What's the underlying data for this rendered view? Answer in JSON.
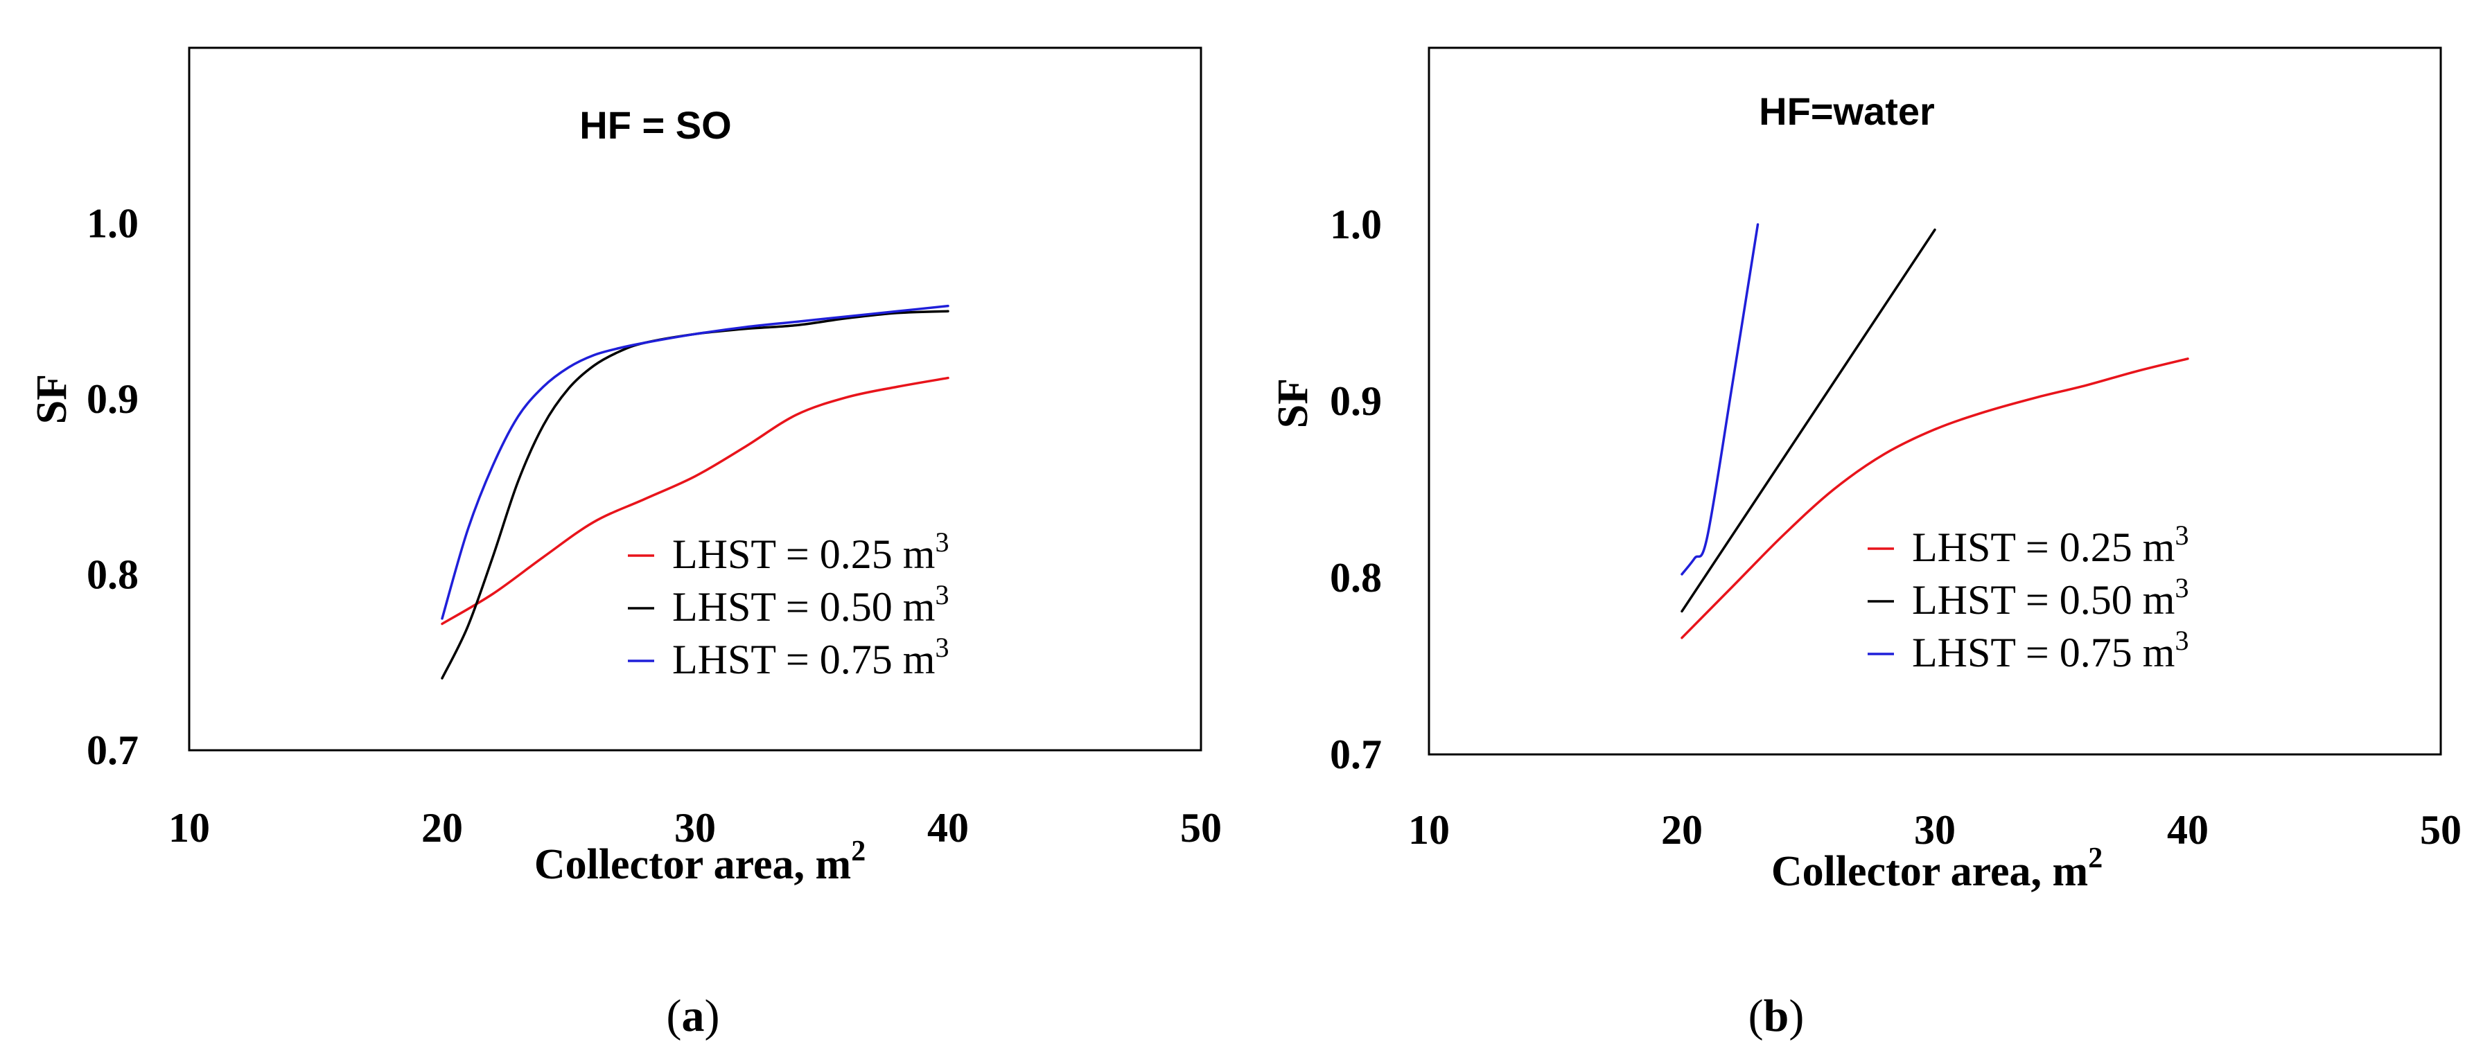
{
  "chart_data": [
    {
      "id": "a",
      "type": "line",
      "title": "HF = SO",
      "panel_label": "a",
      "xlabel": "Collector area, m",
      "xlabel_sup": "2",
      "ylabel": "SF",
      "xlim": [
        10,
        50
      ],
      "ylim": [
        0.7,
        1.1
      ],
      "x_ticks": [
        "10",
        "20",
        "30",
        "40",
        "50"
      ],
      "y_ticks": [
        "0.7",
        "0.8",
        "0.9",
        "1.0"
      ],
      "grid": false,
      "legend_position": "bottom-right",
      "series": [
        {
          "name": "LHST = 0.25 m",
          "name_sup": "3",
          "color": "#e8141b",
          "x": [
            20,
            22,
            24,
            26,
            28,
            30,
            32,
            34,
            36,
            38,
            40
          ],
          "y": [
            0.772,
            0.789,
            0.81,
            0.83,
            0.843,
            0.856,
            0.873,
            0.891,
            0.901,
            0.907,
            0.912
          ]
        },
        {
          "name": "LHST = 0.50 m",
          "name_sup": "3",
          "color": "#000000",
          "x": [
            20,
            21,
            22,
            23,
            24,
            25,
            26,
            27,
            28,
            30,
            32,
            34,
            36,
            38,
            40
          ],
          "y": [
            0.741,
            0.77,
            0.81,
            0.853,
            0.885,
            0.906,
            0.919,
            0.927,
            0.932,
            0.937,
            0.94,
            0.942,
            0.946,
            0.949,
            0.95
          ]
        },
        {
          "name": "LHST = 0.75 m",
          "name_sup": "3",
          "color": "#1f1fd9",
          "x": [
            20,
            21,
            22,
            23,
            24,
            25,
            26,
            27,
            28,
            30,
            32,
            34,
            36,
            38,
            40
          ],
          "y": [
            0.775,
            0.825,
            0.862,
            0.89,
            0.907,
            0.918,
            0.925,
            0.929,
            0.932,
            0.937,
            0.941,
            0.944,
            0.947,
            0.95,
            0.953
          ]
        }
      ]
    },
    {
      "id": "b",
      "type": "line",
      "title": "HF=water",
      "panel_label": "b",
      "xlabel": "Collector area, m",
      "xlabel_sup": "2",
      "ylabel": "SF",
      "xlim": [
        10,
        50
      ],
      "ylim": [
        0.7,
        1.1
      ],
      "x_ticks": [
        "10",
        "20",
        "30",
        "40",
        "50"
      ],
      "y_ticks": [
        "0.7",
        "0.8",
        "0.9",
        "1.0"
      ],
      "grid": false,
      "legend_position": "bottom-right",
      "series": [
        {
          "name": "LHST = 0.25 m",
          "name_sup": "3",
          "color": "#e8141b",
          "x": [
            20,
            22,
            24,
            26,
            28,
            30,
            32,
            34,
            36,
            38,
            40
          ],
          "y": [
            0.766,
            0.795,
            0.824,
            0.85,
            0.87,
            0.884,
            0.894,
            0.902,
            0.909,
            0.917,
            0.924
          ]
        },
        {
          "name": "LHST = 0.50 m",
          "name_sup": "3",
          "color": "#000000",
          "x": [
            20,
            30
          ],
          "y": [
            0.781,
            0.997
          ]
        },
        {
          "name": "LHST = 0.75 m",
          "name_sup": "3",
          "color": "#1f1fd9",
          "x": [
            20,
            20.5,
            21,
            22,
            23
          ],
          "y": [
            0.802,
            0.811,
            0.823,
            0.91,
            1.0
          ]
        }
      ]
    }
  ]
}
